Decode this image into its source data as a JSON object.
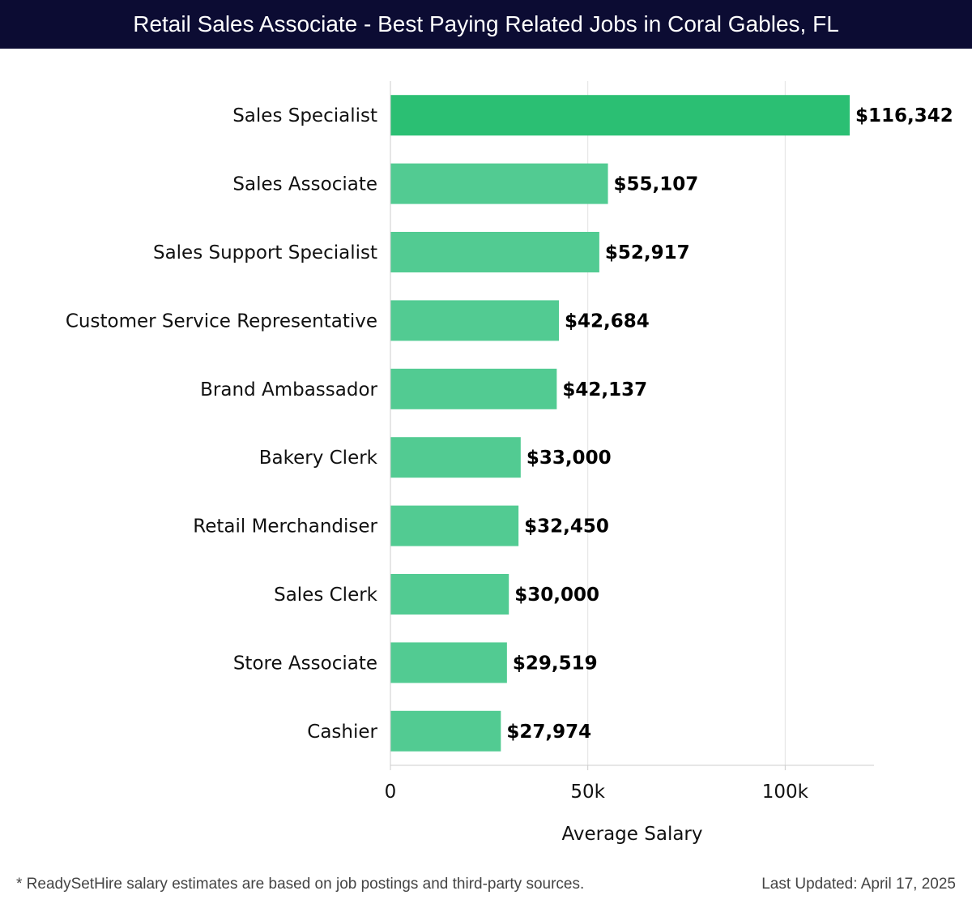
{
  "header": {
    "title": "Retail Sales Associate - Best Paying Related Jobs in Coral Gables, FL"
  },
  "colors": {
    "header_bg": "#0c0c33",
    "bar_top": "#2bbf73",
    "bar": "#52cb92",
    "grid": "#e3e3e3"
  },
  "chart_data": {
    "type": "bar",
    "orientation": "horizontal",
    "title": "Retail Sales Associate - Best Paying Related Jobs in Coral Gables, FL",
    "categories": [
      "Sales Specialist",
      "Sales Associate",
      "Sales Support Specialist",
      "Customer Service Representative",
      "Brand Ambassador",
      "Bakery Clerk",
      "Retail Merchandiser",
      "Sales Clerk",
      "Store Associate",
      "Cashier"
    ],
    "values": [
      116342,
      55107,
      52917,
      42684,
      42137,
      33000,
      32450,
      30000,
      29519,
      27974
    ],
    "value_labels": [
      "$116,342",
      "$55,107",
      "$52,917",
      "$42,684",
      "$42,137",
      "$33,000",
      "$32,450",
      "$30,000",
      "$29,519",
      "$27,974"
    ],
    "xlabel": "Average Salary",
    "ylabel": "",
    "xlim": [
      0,
      122500
    ],
    "xticks": [
      0,
      50000,
      100000
    ],
    "xtick_labels": [
      "0",
      "50k",
      "100k"
    ],
    "grid": true
  },
  "footer": {
    "note": "* ReadySetHire salary estimates are based on job postings and third-party sources.",
    "updated": "Last Updated: April 17, 2025"
  }
}
